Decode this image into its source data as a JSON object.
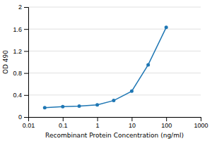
{
  "chart_data": {
    "type": "line",
    "x": [
      0.03,
      0.1,
      0.3,
      1,
      3,
      10,
      30,
      100
    ],
    "values": [
      0.17,
      0.19,
      0.2,
      0.22,
      0.3,
      0.47,
      0.95,
      1.63
    ],
    "xlabel": "Recombinant Protein Concentration (ng/ml)",
    "ylabel": "OD 490",
    "xlim": [
      0.01,
      1000
    ],
    "ylim": [
      0,
      2
    ],
    "xticks": [
      0.01,
      0.1,
      1,
      10,
      100,
      1000
    ],
    "yticks": [
      0,
      0.4,
      0.8,
      1.2,
      1.6,
      2
    ],
    "log": "x",
    "grid": "y",
    "marker": "circle"
  }
}
